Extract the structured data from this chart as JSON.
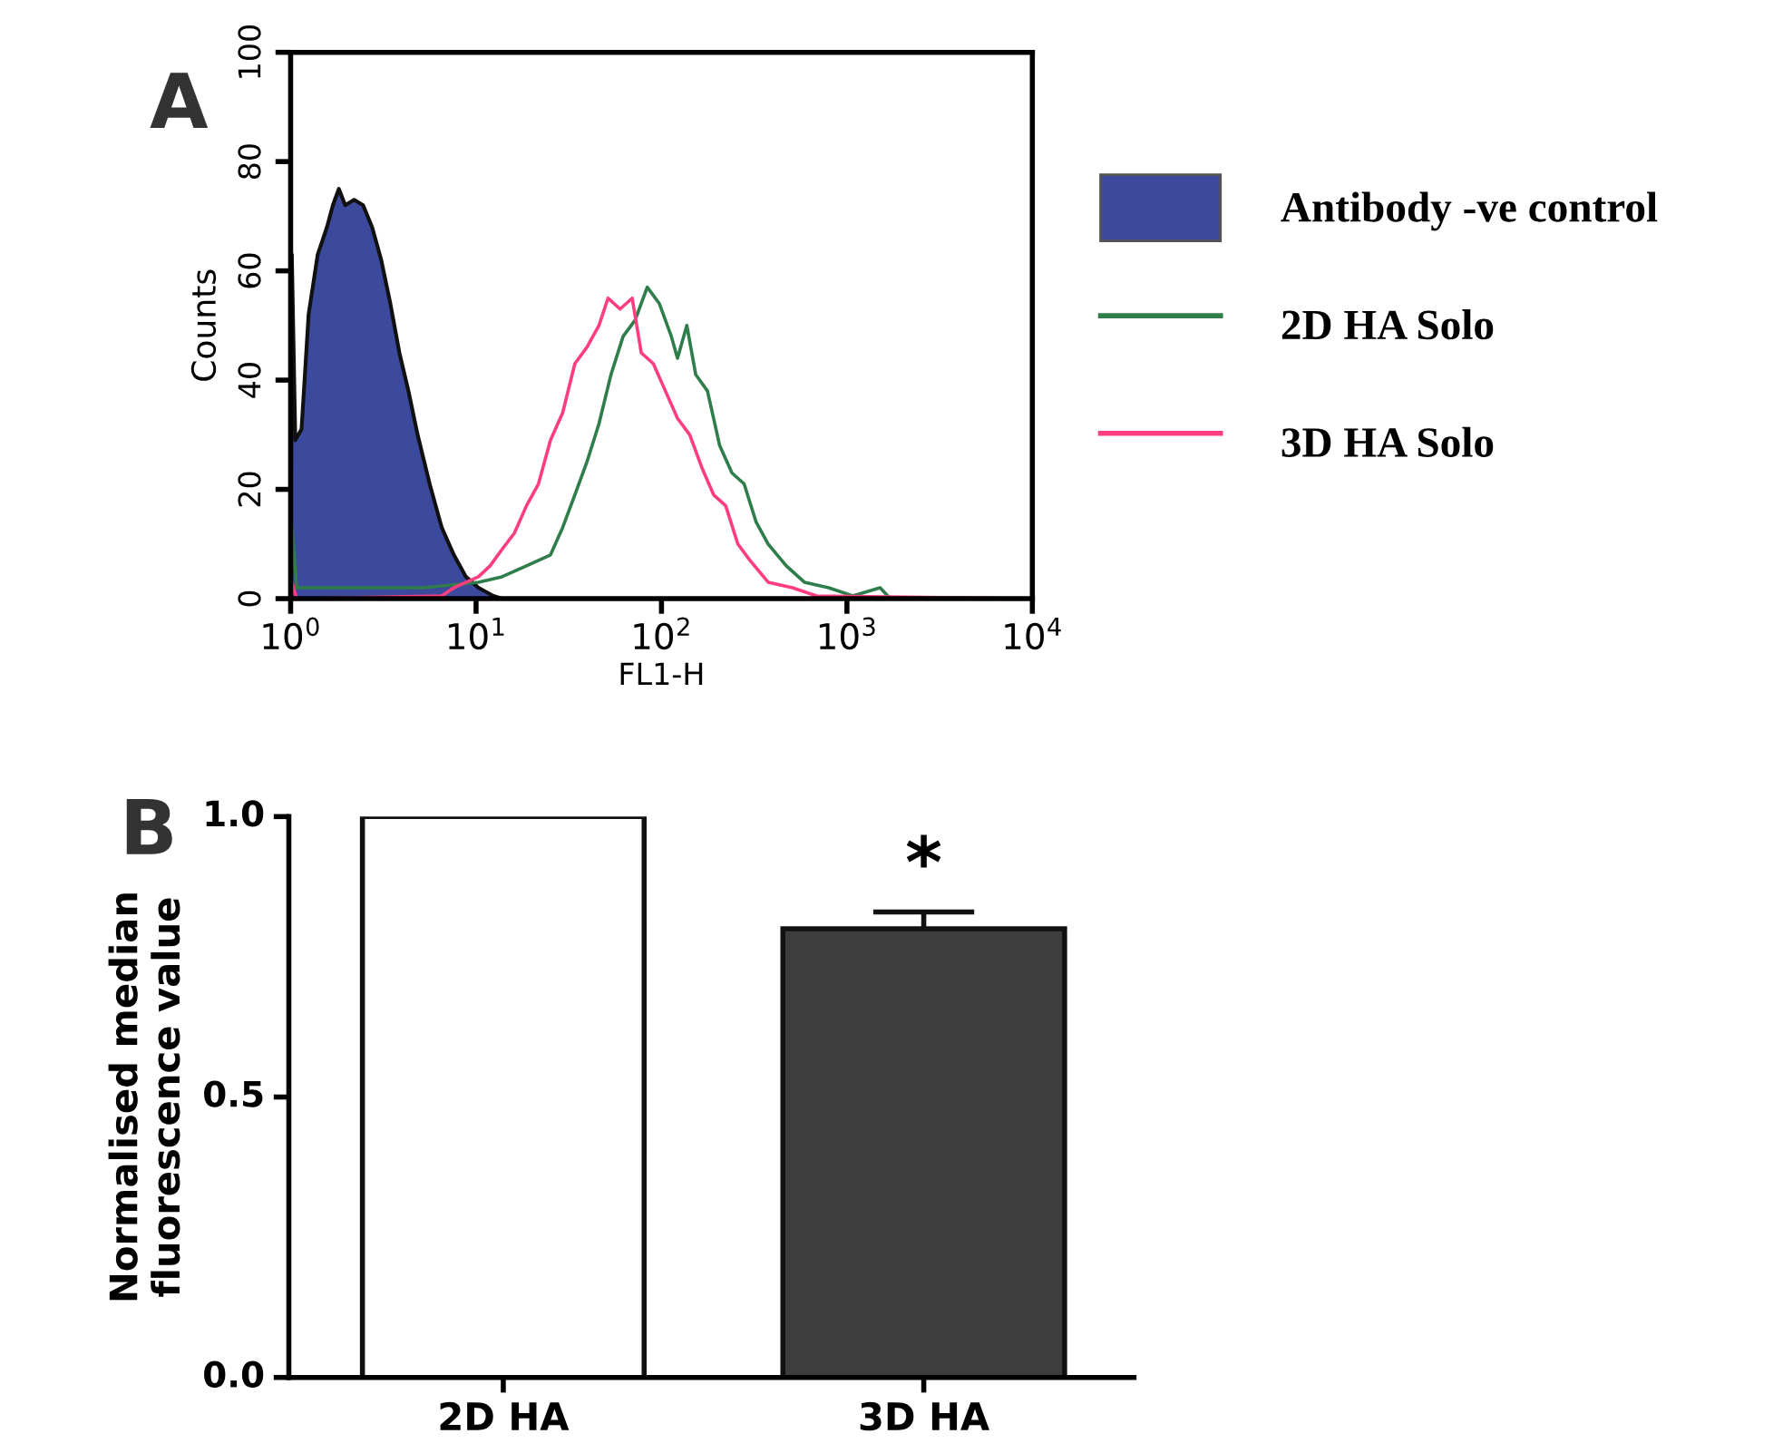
{
  "chart_data": [
    {
      "type": "line",
      "title": "A",
      "xlabel": "FL1-H",
      "ylabel": "Counts",
      "log": "x",
      "legend": "right",
      "xlim": [
        1,
        10000
      ],
      "ylim": [
        0,
        100
      ],
      "xticks": [
        {
          "value": 1,
          "label": "10$^{0}$"
        },
        {
          "value": 10,
          "label": "10$^{1}$"
        },
        {
          "value": 100,
          "label": "10$^{2}$"
        },
        {
          "value": 1000,
          "label": "10$^{3}$"
        },
        {
          "value": 10000,
          "label": "10$^{4}$"
        }
      ],
      "yticks": [
        0,
        20,
        40,
        60,
        80,
        100
      ],
      "series": [
        {
          "name": "Antibody -ve control",
          "type": "area",
          "color": "#3c4a9e",
          "x": [
            1,
            1.015,
            1.06,
            1.145,
            1.25,
            1.4,
            1.57,
            1.69,
            1.82,
            1.97,
            2.2,
            2.46,
            2.75,
            3.08,
            3.45,
            3.86,
            4.32,
            4.84,
            5.62,
            6.53,
            7.59,
            8.82,
            10.3,
            12.4,
            13.8
          ],
          "values": [
            0,
            63,
            29,
            31,
            52,
            63,
            68,
            72,
            75,
            72,
            73,
            72,
            68,
            62,
            54,
            45,
            38,
            30,
            21,
            13,
            8,
            4,
            2,
            0.5,
            0
          ]
        },
        {
          "name": "2D HA Solo",
          "type": "line",
          "color": "#2e7d4a",
          "x": [
            1,
            1.015,
            1.08,
            5.21,
            10.3,
            13.8,
            18.7,
            25.2,
            29.3,
            34.1,
            39.6,
            46,
            53.4,
            62.1,
            72.1,
            83.8,
            97.4,
            113,
            122,
            137,
            153,
            177,
            206,
            240,
            279,
            324,
            376,
            471,
            590,
            797,
            1076,
            1510,
            1690,
            10000
          ],
          "values": [
            2,
            13,
            2,
            2,
            3,
            4,
            6,
            8,
            13,
            19,
            25,
            32,
            41,
            48,
            51,
            57,
            54,
            48,
            44,
            50,
            41,
            38,
            28,
            23,
            21,
            14,
            10,
            6,
            3,
            2,
            0.5,
            2,
            0.2,
            0
          ]
        },
        {
          "name": "3D HA Solo",
          "type": "line",
          "color": "#ff3d7f",
          "x": [
            1,
            1.015,
            1.08,
            6.53,
            7.59,
            10.3,
            11.9,
            13.8,
            16.1,
            18.7,
            21.7,
            25.2,
            29.3,
            34.1,
            39.6,
            46,
            51.5,
            59.8,
            69.5,
            77.8,
            90.4,
            105,
            122,
            142,
            165,
            191,
            222,
            258,
            300,
            376,
            508,
            686,
            10000
          ],
          "values": [
            0,
            3,
            0,
            0.5,
            2,
            4,
            6,
            9,
            12,
            17,
            21,
            29,
            34,
            43,
            46,
            50,
            55,
            53,
            55,
            45,
            43,
            38,
            33,
            30,
            24,
            19,
            17,
            10,
            7,
            3,
            2,
            0.5,
            0
          ]
        }
      ]
    },
    {
      "type": "bar",
      "title": "B",
      "ylabel": "Normalised median\nfluorescence value",
      "categories": [
        "2D HA",
        "3D HA"
      ],
      "values": [
        1.0,
        0.8
      ],
      "colors": [
        "#ffffff",
        "#3d3d3d"
      ],
      "errors": [
        null,
        [
          0.8,
          0.83
        ]
      ],
      "ylim": [
        0,
        1
      ],
      "yticks": [
        {
          "value": 0,
          "label": "0.0"
        },
        {
          "value": 0.5,
          "label": "0.5"
        },
        {
          "value": 1,
          "label": "1.0"
        }
      ],
      "annotations": [
        "*"
      ]
    }
  ]
}
